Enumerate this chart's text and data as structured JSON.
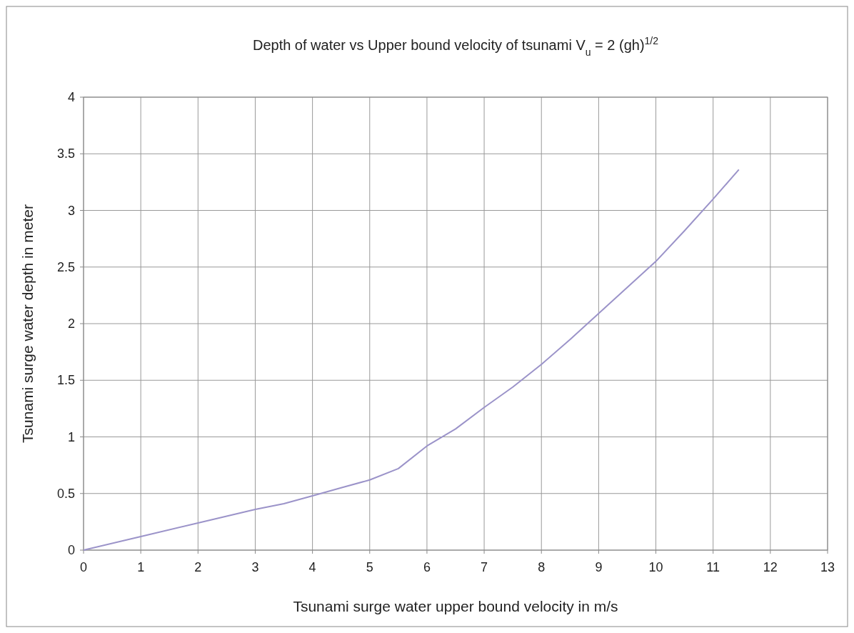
{
  "chart_data": {
    "type": "line",
    "title": "Depth of water  vs Upper bound velocity of tsunami    V$_{u}$ = 2 (gh)$^{1/2}$",
    "xlabel": "Tsunami surge water upper bound velocity in m/s",
    "ylabel": "Tsunami surge water depth in meter",
    "series": [
      {
        "color": "#9b93c9",
        "x": [
          0,
          1,
          2,
          3,
          3.5,
          4,
          4.5,
          5,
          5.5,
          6,
          6.5,
          7,
          7.5,
          8,
          8.5,
          9,
          9.5,
          10,
          10.5,
          11,
          11.45
        ],
        "values": [
          0,
          0.12,
          0.24,
          0.36,
          0.41,
          0.48,
          0.55,
          0.62,
          0.72,
          0.92,
          1.07,
          1.26,
          1.44,
          1.64,
          1.86,
          2.09,
          2.32,
          2.55,
          2.82,
          3.1,
          3.36
        ]
      }
    ],
    "xlim": [
      0,
      13
    ],
    "xticks": [
      0,
      1,
      2,
      3,
      4,
      5,
      6,
      7,
      8,
      9,
      10,
      11,
      12,
      13
    ],
    "ylim": [
      0,
      4
    ],
    "yticks": [
      0,
      0.5,
      1,
      1.5,
      2,
      2.5,
      3,
      3.5,
      4
    ],
    "grid": true,
    "marker": "none",
    "line_style": "solid"
  }
}
